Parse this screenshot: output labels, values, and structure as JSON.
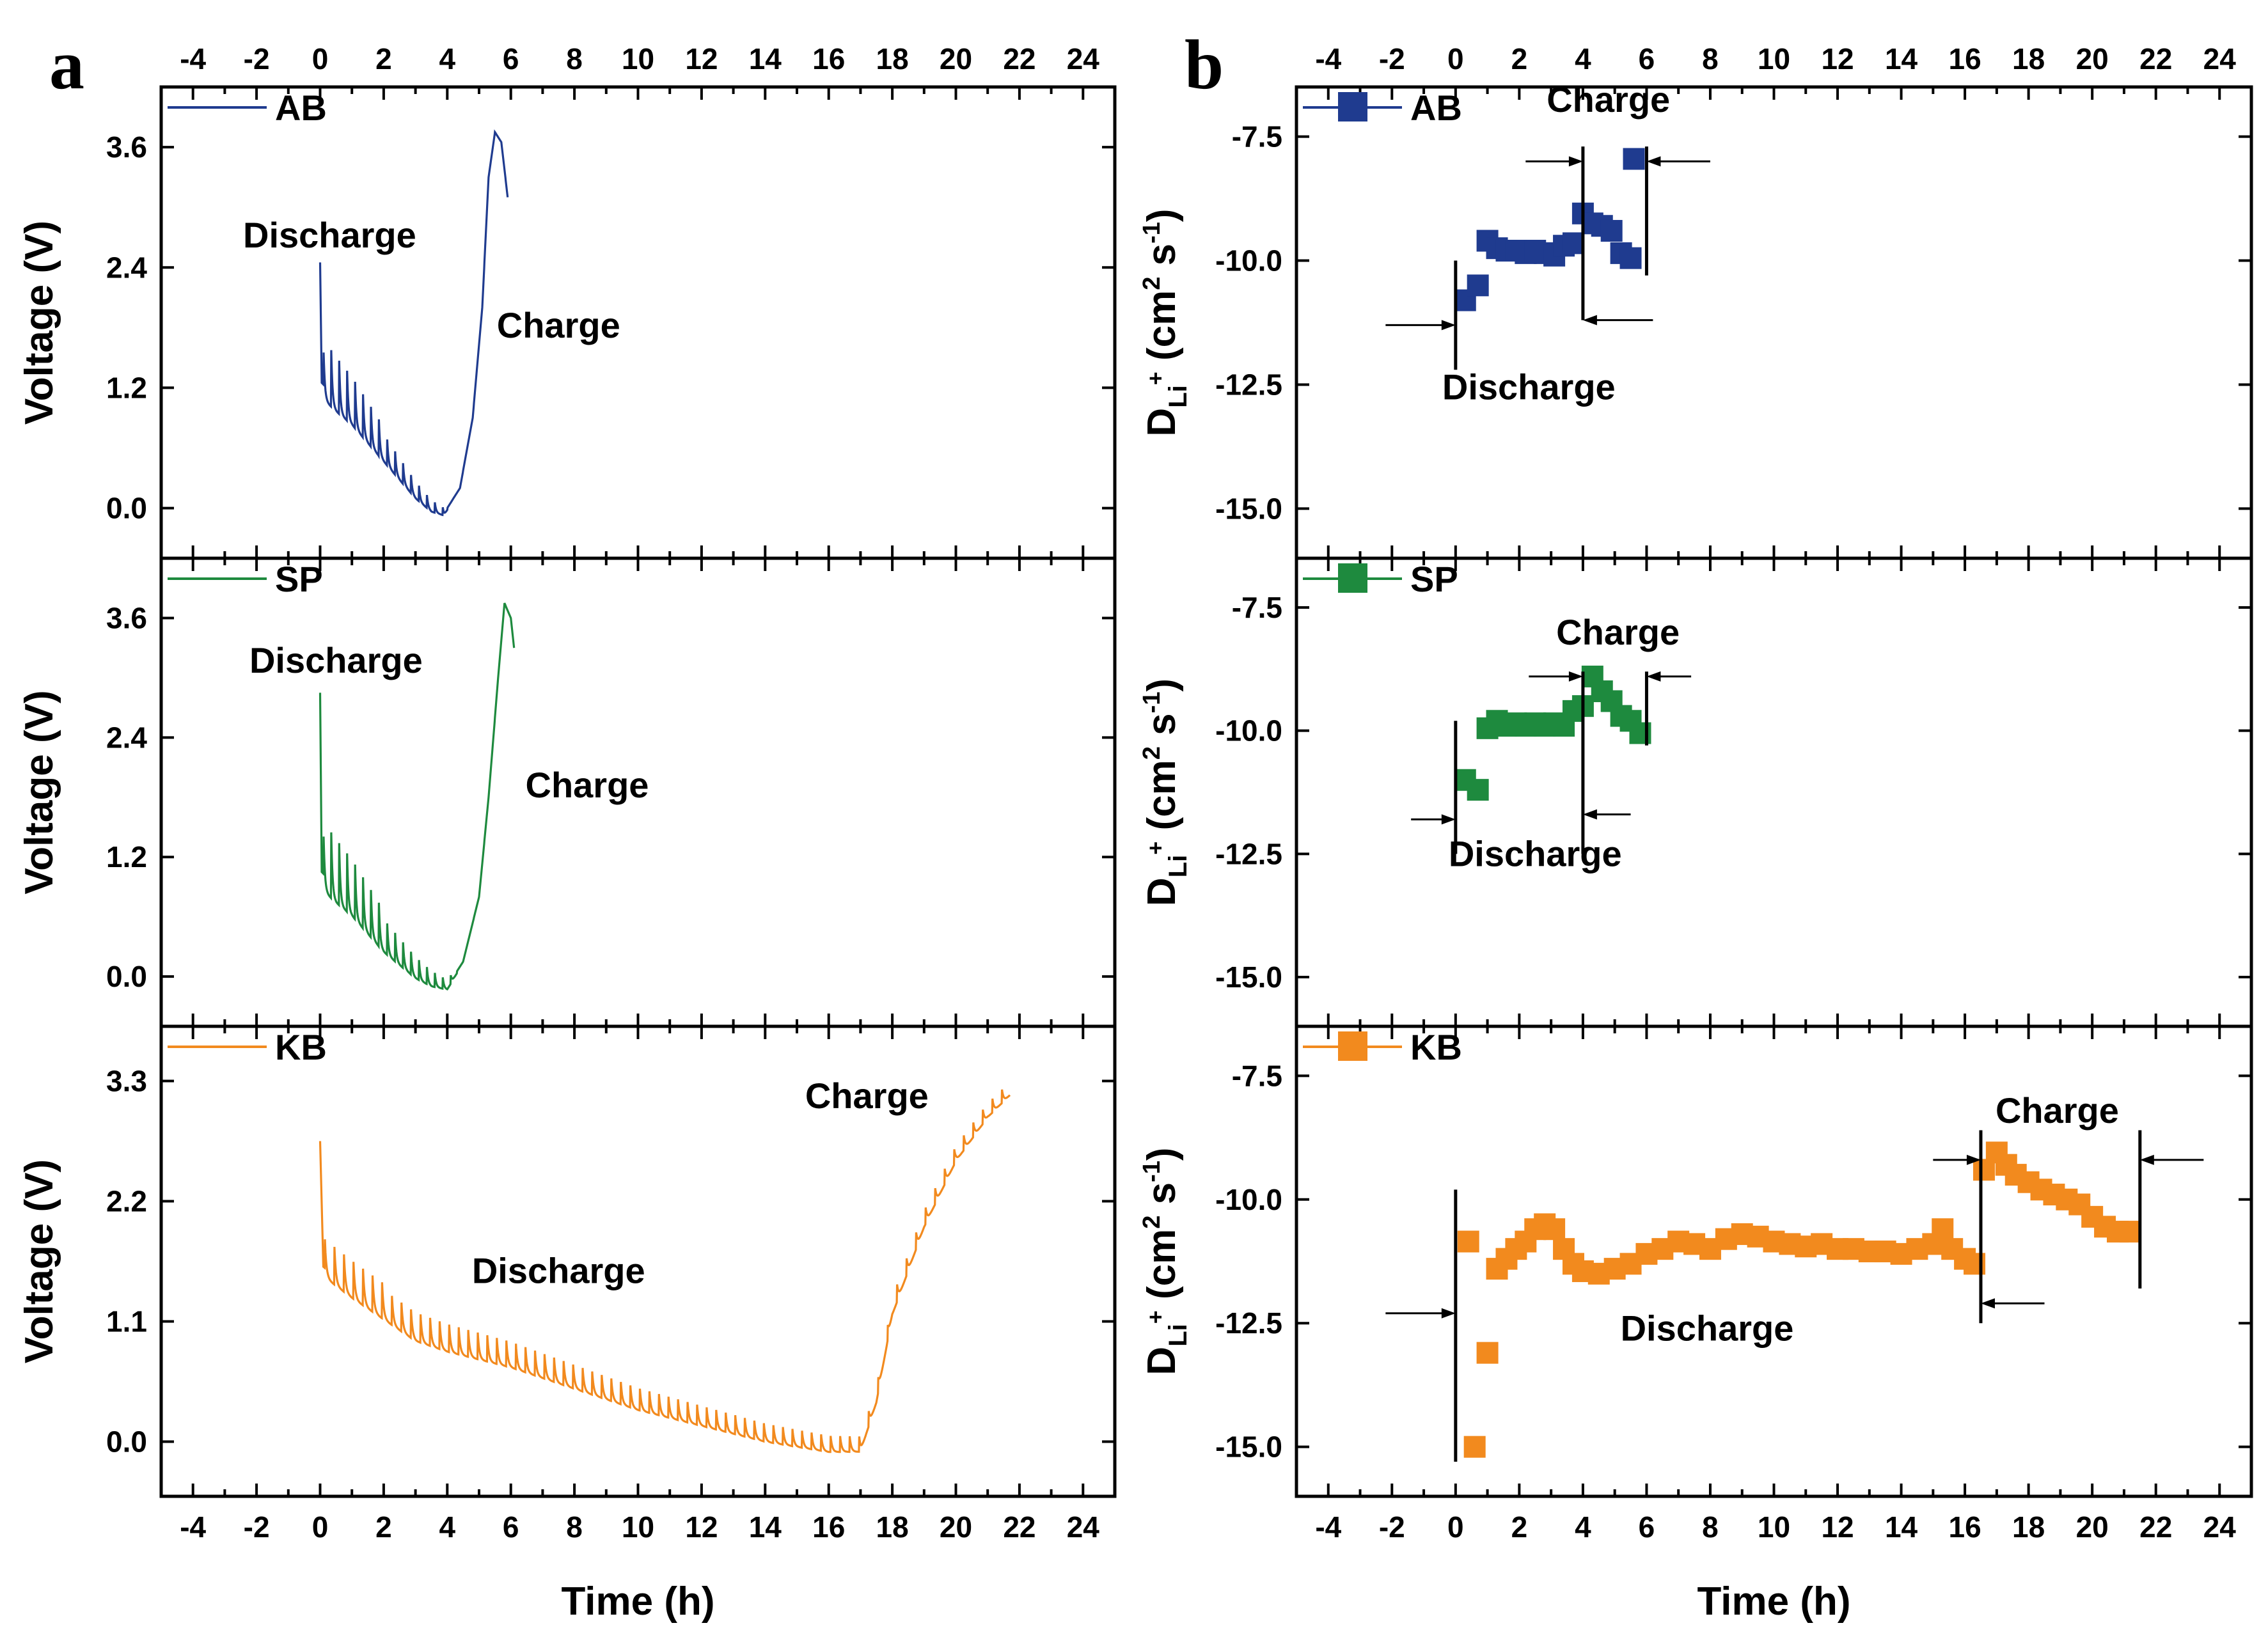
{
  "chart_data": {
    "type": "line",
    "xlabel": "Time (h)",
    "xlim": [
      -5,
      25
    ],
    "xticks": [
      -4,
      -2,
      0,
      2,
      4,
      6,
      8,
      10,
      12,
      14,
      16,
      18,
      20,
      22,
      24
    ],
    "panels": [
      {
        "label": "a",
        "ylabel": "Voltage (V)",
        "kind": "line",
        "rows": [
          {
            "name": "AB",
            "color": "#1f3b8f",
            "ylim": [
              -0.5,
              4.2
            ],
            "yticks": [
              0.0,
              1.2,
              2.4,
              3.6
            ],
            "ytick_labels": [
              "0.0",
              "1.2",
              "2.4",
              "3.6"
            ],
            "discharge_label": "Discharge",
            "charge_label": "Charge",
            "anchors": [
              [
                0.0,
                2.45
              ],
              [
                0.05,
                1.25
              ],
              [
                0.5,
                1.1
              ],
              [
                1.0,
                0.95
              ],
              [
                1.5,
                0.75
              ],
              [
                2.0,
                0.55
              ],
              [
                2.5,
                0.35
              ],
              [
                3.0,
                0.15
              ],
              [
                3.5,
                0.0
              ],
              [
                3.9,
                -0.05
              ],
              [
                4.4,
                0.2
              ],
              [
                4.8,
                0.9
              ],
              [
                5.1,
                2.0
              ],
              [
                5.3,
                3.3
              ],
              [
                5.5,
                3.75
              ],
              [
                5.7,
                3.65
              ],
              [
                5.9,
                3.1
              ]
            ],
            "pulses": {
              "start": 0.1,
              "end": 4.0,
              "period": 0.25,
              "amp_start": 0.6,
              "amp_end": 0.08
            }
          },
          {
            "name": "SP",
            "color": "#1e8a3e",
            "ylim": [
              -0.5,
              4.2
            ],
            "yticks": [
              0.0,
              1.2,
              2.4,
              3.6
            ],
            "ytick_labels": [
              "0.0",
              "1.2",
              "2.4",
              "3.6"
            ],
            "discharge_label": "Discharge",
            "charge_label": "Charge",
            "anchors": [
              [
                0.0,
                2.85
              ],
              [
                0.05,
                1.05
              ],
              [
                0.5,
                0.9
              ],
              [
                1.0,
                0.75
              ],
              [
                1.5,
                0.55
              ],
              [
                2.0,
                0.35
              ],
              [
                2.5,
                0.2
              ],
              [
                3.0,
                0.05
              ],
              [
                3.5,
                -0.05
              ],
              [
                4.0,
                -0.1
              ],
              [
                4.5,
                0.15
              ],
              [
                5.0,
                0.8
              ],
              [
                5.3,
                1.8
              ],
              [
                5.6,
                3.0
              ],
              [
                5.8,
                3.75
              ],
              [
                6.0,
                3.6
              ],
              [
                6.1,
                3.3
              ]
            ],
            "pulses": {
              "start": 0.1,
              "end": 4.3,
              "period": 0.25,
              "amp_start": 0.7,
              "amp_end": 0.08
            }
          },
          {
            "name": "KB",
            "color": "#f28a1e",
            "ylim": [
              -0.5,
              3.8
            ],
            "yticks": [
              0.0,
              1.1,
              2.2,
              3.3
            ],
            "ytick_labels": [
              "0.0",
              "1.1",
              "2.2",
              "3.3"
            ],
            "discharge_label": "Discharge",
            "charge_label": "Charge",
            "anchors": [
              [
                0.0,
                2.75
              ],
              [
                0.1,
                1.6
              ],
              [
                1.0,
                1.4
              ],
              [
                2.0,
                1.2
              ],
              [
                3.0,
                1.0
              ],
              [
                4.0,
                0.9
              ],
              [
                6.0,
                0.75
              ],
              [
                8.0,
                0.55
              ],
              [
                10.0,
                0.35
              ],
              [
                12.0,
                0.2
              ],
              [
                14.0,
                0.05
              ],
              [
                16.0,
                -0.05
              ],
              [
                17.0,
                -0.05
              ],
              [
                17.5,
                0.4
              ],
              [
                18.0,
                1.2
              ],
              [
                19.0,
                2.0
              ],
              [
                20.0,
                2.6
              ],
              [
                21.0,
                3.0
              ],
              [
                21.7,
                3.2
              ]
            ],
            "pulses": {
              "start": 0.15,
              "end": 21.8,
              "period": 0.3,
              "amp_start": 0.35,
              "amp_end": 0.12
            }
          }
        ]
      },
      {
        "label": "b",
        "ylabel_main": "D",
        "ylabel_sub": "Li",
        "ylabel_sup": "+",
        "ylabel_units": "(cm",
        "ylabel_units_sup": "2",
        "ylabel_units_mid": " s",
        "ylabel_units_sup2": "-1",
        "ylabel_units_end": ")",
        "kind": "scatter",
        "rows": [
          {
            "name": "AB",
            "color": "#1f3b8f",
            "ylim": [
              -16,
              -6.5
            ],
            "yticks": [
              -7.5,
              -10.0,
              -12.5,
              -15.0
            ],
            "ytick_labels": [
              "-7.5",
              "-10.0",
              "-12.5",
              "-15.0"
            ],
            "discharge_label": "Discharge",
            "charge_label": "Charge",
            "points": [
              [
                0.3,
                -10.8
              ],
              [
                0.7,
                -10.5
              ],
              [
                1.0,
                -9.6
              ],
              [
                1.3,
                -9.75
              ],
              [
                1.6,
                -9.8
              ],
              [
                1.9,
                -9.8
              ],
              [
                2.2,
                -9.85
              ],
              [
                2.5,
                -9.8
              ],
              [
                2.8,
                -9.85
              ],
              [
                3.1,
                -9.9
              ],
              [
                3.4,
                -9.7
              ],
              [
                3.7,
                -9.65
              ],
              [
                4.0,
                -9.05
              ],
              [
                4.3,
                -9.25
              ],
              [
                4.6,
                -9.3
              ],
              [
                4.9,
                -9.4
              ],
              [
                5.2,
                -9.85
              ],
              [
                5.5,
                -9.95
              ],
              [
                5.6,
                -7.95
              ]
            ],
            "vlines": [
              [
                0.0,
                -10.0,
                -12.2
              ],
              [
                4.0,
                -7.7,
                -11.2
              ],
              [
                6.0,
                -7.7,
                -10.3
              ]
            ],
            "arrows": [
              [
                -2.2,
                0.0,
                -11.3
              ],
              [
                6.2,
                4.0,
                -11.2
              ],
              [
                2.2,
                4.0,
                -8.0
              ],
              [
                8.0,
                6.0,
                -8.0
              ]
            ]
          },
          {
            "name": "SP",
            "color": "#1e8a3e",
            "ylim": [
              -16,
              -6.5
            ],
            "yticks": [
              -7.5,
              -10.0,
              -12.5,
              -15.0
            ],
            "ytick_labels": [
              "-7.5",
              "-10.0",
              "-12.5",
              "-15.0"
            ],
            "discharge_label": "Discharge",
            "charge_label": "Charge",
            "points": [
              [
                0.3,
                -11.0
              ],
              [
                0.7,
                -11.2
              ],
              [
                1.0,
                -9.95
              ],
              [
                1.3,
                -9.8
              ],
              [
                1.6,
                -9.9
              ],
              [
                1.9,
                -9.85
              ],
              [
                2.2,
                -9.9
              ],
              [
                2.5,
                -9.85
              ],
              [
                2.8,
                -9.9
              ],
              [
                3.1,
                -9.85
              ],
              [
                3.4,
                -9.9
              ],
              [
                3.7,
                -9.6
              ],
              [
                4.0,
                -9.5
              ],
              [
                4.3,
                -8.9
              ],
              [
                4.6,
                -9.2
              ],
              [
                4.9,
                -9.4
              ],
              [
                5.2,
                -9.7
              ],
              [
                5.5,
                -9.8
              ],
              [
                5.8,
                -10.05
              ]
            ],
            "vlines": [
              [
                0.0,
                -9.8,
                -12.5
              ],
              [
                4.0,
                -8.8,
                -12.5
              ],
              [
                6.0,
                -8.8,
                -10.3
              ]
            ],
            "arrows": [
              [
                -1.4,
                0.0,
                -11.8
              ],
              [
                5.5,
                4.0,
                -11.7
              ],
              [
                2.3,
                4.0,
                -8.9
              ],
              [
                7.4,
                6.0,
                -8.9
              ]
            ]
          },
          {
            "name": "KB",
            "color": "#f28a1e",
            "ylim": [
              -16,
              -6.5
            ],
            "yticks": [
              -7.5,
              -10.0,
              -12.5,
              -15.0
            ],
            "ytick_labels": [
              "-7.5",
              "-10.0",
              "-12.5",
              "-15.0"
            ],
            "discharge_label": "Discharge",
            "charge_label": "Charge",
            "points": [
              [
                0.4,
                -10.85
              ],
              [
                0.6,
                -15.0
              ],
              [
                1.0,
                -13.1
              ],
              [
                1.3,
                -11.4
              ],
              [
                1.6,
                -11.2
              ],
              [
                1.9,
                -11.0
              ],
              [
                2.2,
                -10.85
              ],
              [
                2.5,
                -10.6
              ],
              [
                2.8,
                -10.5
              ],
              [
                3.1,
                -10.6
              ],
              [
                3.4,
                -11.0
              ],
              [
                3.7,
                -11.3
              ],
              [
                4.0,
                -11.45
              ],
              [
                4.5,
                -11.5
              ],
              [
                5.0,
                -11.4
              ],
              [
                5.5,
                -11.3
              ],
              [
                6.0,
                -11.1
              ],
              [
                6.5,
                -11.0
              ],
              [
                7.0,
                -10.85
              ],
              [
                7.5,
                -10.9
              ],
              [
                8.0,
                -11.0
              ],
              [
                8.5,
                -10.8
              ],
              [
                9.0,
                -10.7
              ],
              [
                9.5,
                -10.75
              ],
              [
                10.0,
                -10.85
              ],
              [
                10.5,
                -10.9
              ],
              [
                11.0,
                -10.95
              ],
              [
                11.5,
                -10.9
              ],
              [
                12.0,
                -11.0
              ],
              [
                12.5,
                -11.0
              ],
              [
                13.0,
                -11.05
              ],
              [
                13.5,
                -11.05
              ],
              [
                14.0,
                -11.1
              ],
              [
                14.5,
                -11.0
              ],
              [
                15.0,
                -10.9
              ],
              [
                15.3,
                -10.6
              ],
              [
                15.6,
                -11.0
              ],
              [
                16.0,
                -11.2
              ],
              [
                16.3,
                -11.3
              ],
              [
                16.6,
                -9.4
              ],
              [
                17.0,
                -9.05
              ],
              [
                17.3,
                -9.3
              ],
              [
                17.6,
                -9.5
              ],
              [
                18.0,
                -9.65
              ],
              [
                18.4,
                -9.8
              ],
              [
                18.8,
                -9.9
              ],
              [
                19.2,
                -10.0
              ],
              [
                19.6,
                -10.1
              ],
              [
                20.0,
                -10.35
              ],
              [
                20.4,
                -10.55
              ],
              [
                20.8,
                -10.65
              ],
              [
                21.2,
                -10.65
              ]
            ],
            "vlines": [
              [
                0.0,
                -9.8,
                -15.3
              ],
              [
                16.5,
                -8.6,
                -12.5
              ],
              [
                21.5,
                -8.6,
                -11.8
              ]
            ],
            "arrows": [
              [
                -2.2,
                0.0,
                -12.3
              ],
              [
                18.5,
                16.5,
                -12.1
              ],
              [
                15.0,
                16.5,
                -9.2
              ],
              [
                23.5,
                21.5,
                -9.2
              ]
            ]
          }
        ]
      }
    ]
  }
}
